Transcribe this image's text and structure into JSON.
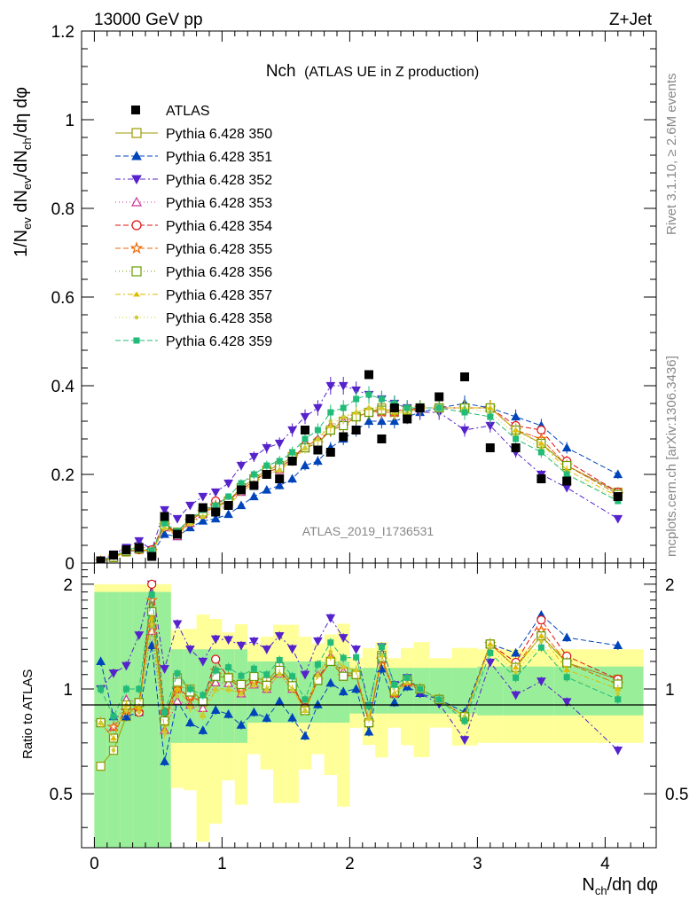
{
  "header": {
    "left": "13000 GeV pp",
    "right": "Z+Jet"
  },
  "side": {
    "rivet": "Rivet 3.1.10, ≥ 2.6M events",
    "mcplots": "mcplots.cern.ch [arXiv:1306.3436]"
  },
  "chart_data": {
    "type": "scatter",
    "title_main": "Nch",
    "title_sub": "(ATLAS UE in Z production)",
    "analysis_tag": "ATLAS_2019_I1736531",
    "ylabel_top": "1/N_ev dN_ev/dN_ch/dη dφ",
    "ylabel_ratio": "Ratio to ATLAS",
    "xlabel": "N_ch/dη dφ",
    "xlim": [
      -0.1,
      4.4
    ],
    "ylim_top": [
      0,
      1.2
    ],
    "ylim_ratio": [
      0.35,
      2.3
    ],
    "x_ticks": [
      "0",
      "1",
      "2",
      "3",
      "4"
    ],
    "y_ticks_top": [
      "0",
      "0.2",
      "0.4",
      "0.6",
      "0.8",
      "1",
      "1.2"
    ],
    "y_ticks_ratio": [
      "0.5",
      "1",
      "2"
    ],
    "x": [
      0.05,
      0.15,
      0.25,
      0.35,
      0.45,
      0.55,
      0.65,
      0.75,
      0.85,
      0.95,
      1.05,
      1.15,
      1.25,
      1.35,
      1.45,
      1.55,
      1.65,
      1.75,
      1.85,
      1.95,
      2.05,
      2.15,
      2.25,
      2.35,
      2.45,
      2.55,
      2.7,
      2.9,
      3.1,
      3.3,
      3.5,
      3.7,
      4.1
    ],
    "data": {
      "name": "ATLAS",
      "values": [
        0.005,
        0.018,
        0.03,
        0.035,
        0.015,
        0.105,
        0.065,
        0.1,
        0.125,
        0.115,
        0.13,
        0.165,
        0.175,
        0.2,
        0.19,
        0.23,
        0.3,
        0.255,
        0.25,
        0.285,
        0.3,
        0.425,
        0.28,
        0.35,
        0.325,
        0.35,
        0.375,
        0.42,
        0.26,
        0.26,
        0.19,
        0.185,
        0.15
      ]
    },
    "series": [
      {
        "name": "Pythia 6.428 350",
        "color": "#999900",
        "marker": "square-open",
        "dash": "solid",
        "values": [
          0.003,
          0.012,
          0.025,
          0.032,
          0.025,
          0.085,
          0.07,
          0.1,
          0.115,
          0.125,
          0.14,
          0.17,
          0.19,
          0.21,
          0.22,
          0.24,
          0.26,
          0.27,
          0.3,
          0.32,
          0.33,
          0.34,
          0.35,
          0.34,
          0.34,
          0.35,
          0.35,
          0.35,
          0.35,
          0.3,
          0.27,
          0.22,
          0.16
        ]
      },
      {
        "name": "Pythia 6.428 351",
        "color": "#0044bb",
        "marker": "triangle-up",
        "dash": "6,3",
        "values": [
          0.006,
          0.015,
          0.025,
          0.03,
          0.02,
          0.065,
          0.06,
          0.08,
          0.095,
          0.1,
          0.11,
          0.13,
          0.15,
          0.165,
          0.175,
          0.19,
          0.22,
          0.23,
          0.26,
          0.28,
          0.3,
          0.32,
          0.32,
          0.32,
          0.33,
          0.34,
          0.35,
          0.36,
          0.35,
          0.33,
          0.31,
          0.26,
          0.2
        ]
      },
      {
        "name": "Pythia 6.428 352",
        "color": "#5522cc",
        "marker": "triangle-down",
        "dash": "6,3,2,3",
        "values": [
          0.005,
          0.02,
          0.035,
          0.05,
          0.03,
          0.12,
          0.1,
          0.13,
          0.15,
          0.16,
          0.18,
          0.22,
          0.24,
          0.26,
          0.27,
          0.3,
          0.33,
          0.35,
          0.4,
          0.4,
          0.39,
          0.38,
          0.37,
          0.36,
          0.35,
          0.34,
          0.34,
          0.3,
          0.31,
          0.25,
          0.2,
          0.17,
          0.1
        ]
      },
      {
        "name": "Pythia 6.428 353",
        "color": "#cc3399",
        "marker": "triangle-up-open",
        "dash": "1,3",
        "values": [
          0.004,
          0.014,
          0.028,
          0.032,
          0.022,
          0.08,
          0.06,
          0.09,
          0.11,
          0.12,
          0.135,
          0.16,
          0.18,
          0.2,
          0.21,
          0.23,
          0.26,
          0.28,
          0.31,
          0.32,
          0.33,
          0.34,
          0.34,
          0.34,
          0.34,
          0.35,
          0.35,
          0.35,
          0.35,
          0.3,
          0.28,
          0.22,
          0.16
        ]
      },
      {
        "name": "Pythia 6.428 354",
        "color": "#dd1111",
        "marker": "circle-open",
        "dash": "6,3",
        "values": [
          0.004,
          0.013,
          0.027,
          0.03,
          0.03,
          0.09,
          0.065,
          0.095,
          0.115,
          0.14,
          0.14,
          0.165,
          0.185,
          0.205,
          0.215,
          0.235,
          0.265,
          0.275,
          0.3,
          0.31,
          0.33,
          0.34,
          0.345,
          0.345,
          0.345,
          0.35,
          0.35,
          0.35,
          0.35,
          0.31,
          0.3,
          0.23,
          0.16
        ]
      },
      {
        "name": "Pythia 6.428 355",
        "color": "#ee6600",
        "marker": "star-open",
        "dash": "6,3",
        "values": [
          0.004,
          0.014,
          0.026,
          0.031,
          0.027,
          0.085,
          0.065,
          0.095,
          0.115,
          0.13,
          0.14,
          0.165,
          0.185,
          0.205,
          0.215,
          0.235,
          0.26,
          0.27,
          0.3,
          0.31,
          0.33,
          0.34,
          0.34,
          0.34,
          0.34,
          0.35,
          0.35,
          0.35,
          0.35,
          0.3,
          0.28,
          0.22,
          0.155
        ]
      },
      {
        "name": "Pythia 6.428 356",
        "color": "#669900",
        "marker": "square-open",
        "dash": "1,3",
        "values": [
          0.004,
          0.013,
          0.027,
          0.032,
          0.025,
          0.085,
          0.068,
          0.098,
          0.115,
          0.125,
          0.14,
          0.17,
          0.19,
          0.205,
          0.215,
          0.235,
          0.26,
          0.27,
          0.3,
          0.31,
          0.33,
          0.34,
          0.345,
          0.345,
          0.345,
          0.35,
          0.35,
          0.35,
          0.35,
          0.3,
          0.27,
          0.22,
          0.155
        ]
      },
      {
        "name": "Pythia 6.428 357",
        "color": "#ddbb00",
        "marker": "tri-small",
        "dash": "6,3,2,3",
        "values": [
          0.004,
          0.013,
          0.027,
          0.031,
          0.024,
          0.08,
          0.065,
          0.09,
          0.105,
          0.115,
          0.13,
          0.16,
          0.18,
          0.2,
          0.21,
          0.23,
          0.26,
          0.28,
          0.31,
          0.33,
          0.34,
          0.35,
          0.35,
          0.34,
          0.34,
          0.35,
          0.35,
          0.35,
          0.35,
          0.3,
          0.27,
          0.21,
          0.15
        ]
      },
      {
        "name": "Pythia 6.428 358",
        "color": "#cccc33",
        "marker": "dot",
        "dash": "1,3",
        "values": [
          0.004,
          0.012,
          0.026,
          0.03,
          0.023,
          0.078,
          0.062,
          0.088,
          0.105,
          0.115,
          0.13,
          0.16,
          0.18,
          0.2,
          0.21,
          0.23,
          0.26,
          0.28,
          0.32,
          0.33,
          0.34,
          0.35,
          0.35,
          0.34,
          0.34,
          0.35,
          0.35,
          0.35,
          0.34,
          0.29,
          0.26,
          0.2,
          0.145
        ]
      },
      {
        "name": "Pythia 6.428 359",
        "color": "#22bb77",
        "marker": "square",
        "dash": "6,3",
        "values": [
          0.005,
          0.015,
          0.03,
          0.035,
          0.028,
          0.09,
          0.072,
          0.1,
          0.12,
          0.13,
          0.15,
          0.18,
          0.2,
          0.22,
          0.23,
          0.25,
          0.28,
          0.3,
          0.34,
          0.35,
          0.37,
          0.38,
          0.37,
          0.36,
          0.35,
          0.35,
          0.35,
          0.34,
          0.33,
          0.28,
          0.25,
          0.2,
          0.14
        ]
      }
    ]
  }
}
